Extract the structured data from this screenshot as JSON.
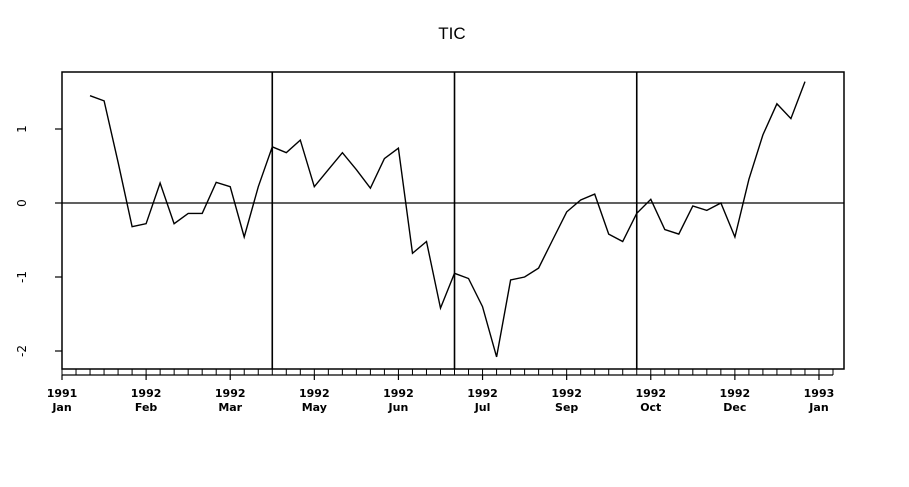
{
  "chart_data": {
    "type": "line",
    "title": "TIC",
    "xlabel": "",
    "ylabel": "",
    "ylim": [
      -2.25,
      1.8
    ],
    "xlim": [
      0,
      55
    ],
    "yticks": [
      {
        "value": 1,
        "label": "1"
      },
      {
        "value": 0,
        "label": "0"
      },
      {
        "value": -1,
        "label": "-1"
      },
      {
        "value": -2,
        "label": "-2"
      }
    ],
    "xticks": [
      {
        "x": 0,
        "year": "1991",
        "month": "Jan"
      },
      {
        "x": 6,
        "year": "1992",
        "month": "Feb"
      },
      {
        "x": 12,
        "year": "1992",
        "month": "Mar"
      },
      {
        "x": 18,
        "year": "1992",
        "month": "May"
      },
      {
        "x": 24,
        "year": "1992",
        "month": "Jun"
      },
      {
        "x": 30,
        "year": "1992",
        "month": "Jul"
      },
      {
        "x": 36,
        "year": "1992",
        "month": "Sep"
      },
      {
        "x": 42,
        "year": "1992",
        "month": "Oct"
      },
      {
        "x": 48,
        "year": "1992",
        "month": "Dec"
      },
      {
        "x": 54,
        "year": "1993",
        "month": "Jan"
      }
    ],
    "minor_ticks_every": 1,
    "reference_lines": {
      "horizontal": [
        0
      ],
      "vertical": [
        15,
        28,
        41
      ]
    },
    "series": [
      {
        "values": [
          [
            2,
            1.45
          ],
          [
            3,
            1.38
          ],
          [
            4,
            0.55
          ],
          [
            5,
            -0.32
          ],
          [
            6,
            -0.28
          ],
          [
            7,
            0.27
          ],
          [
            8,
            -0.28
          ],
          [
            9,
            -0.14
          ],
          [
            10,
            -0.14
          ],
          [
            11,
            0.28
          ],
          [
            12,
            0.22
          ],
          [
            13,
            -0.46
          ],
          [
            14,
            0.22
          ],
          [
            15,
            0.76
          ],
          [
            16,
            0.68
          ],
          [
            17,
            0.85
          ],
          [
            18,
            0.22
          ],
          [
            19,
            0.45
          ],
          [
            20,
            0.68
          ],
          [
            21,
            0.45
          ],
          [
            22,
            0.2
          ],
          [
            23,
            0.6
          ],
          [
            24,
            0.74
          ],
          [
            25,
            -0.68
          ],
          [
            26,
            -0.52
          ],
          [
            27,
            -1.42
          ],
          [
            28,
            -0.95
          ],
          [
            29,
            -1.02
          ],
          [
            30,
            -1.4
          ],
          [
            31,
            -2.08
          ],
          [
            32,
            -1.04
          ],
          [
            33,
            -1.0
          ],
          [
            34,
            -0.88
          ],
          [
            35,
            -0.5
          ],
          [
            36,
            -0.12
          ],
          [
            37,
            0.04
          ],
          [
            38,
            0.12
          ],
          [
            39,
            -0.42
          ],
          [
            40,
            -0.52
          ],
          [
            41,
            -0.14
          ],
          [
            42,
            0.05
          ],
          [
            43,
            -0.36
          ],
          [
            44,
            -0.42
          ],
          [
            45,
            -0.04
          ],
          [
            46,
            -0.1
          ],
          [
            47,
            0.0
          ],
          [
            48,
            -0.46
          ],
          [
            49,
            0.32
          ],
          [
            50,
            0.92
          ],
          [
            51,
            1.34
          ],
          [
            52,
            1.14
          ],
          [
            53,
            1.64
          ]
        ],
        "color": "#000000"
      }
    ]
  }
}
